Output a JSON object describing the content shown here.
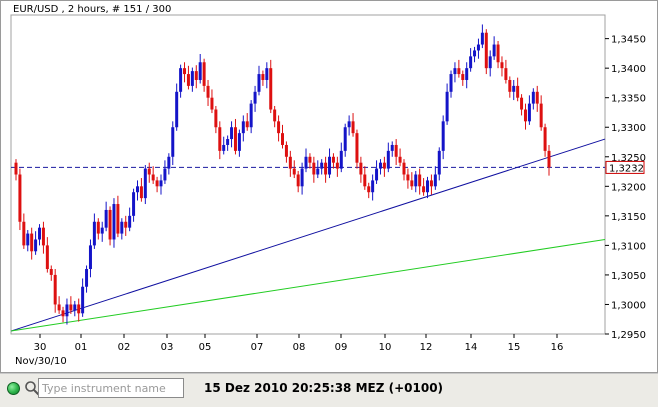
{
  "chart": {
    "title": "EUR/USD , 2 hours, # 151 / 300",
    "last_price_label": "1,3232"
  },
  "chart_data": {
    "type": "candlestick",
    "instrument": "EUR/USD",
    "timeframe": "2 hours",
    "ylim": [
      1.295,
      1.349
    ],
    "y_ticks": [
      "1,2950",
      "1,3000",
      "1,3050",
      "1,3100",
      "1,3150",
      "1,3200",
      "1,3250",
      "1,3300",
      "1,3350",
      "1,3400",
      "1,3450"
    ],
    "y_tick_values": [
      1.295,
      1.3,
      1.305,
      1.31,
      1.315,
      1.32,
      1.325,
      1.33,
      1.335,
      1.34,
      1.345
    ],
    "x_tick_labels": [
      "30",
      "01",
      "02",
      "03",
      "05",
      "07",
      "08",
      "09",
      "10",
      "12",
      "14",
      "15",
      "16"
    ],
    "x_sublabel": "Nov/30/10",
    "last_price": 1.3232,
    "trendlines": [
      {
        "color": "#1010a0",
        "start": {
          "date": "Nov/29/10",
          "price": 1.2955
        },
        "end": {
          "date": "Dec/17/10",
          "price": 1.328
        }
      },
      {
        "color": "#22cc22",
        "start": {
          "date": "Nov/29/10",
          "price": 1.2955
        },
        "end": {
          "date": "Dec/17/10",
          "price": 1.311
        }
      }
    ],
    "closes": [
      1.322,
      1.314,
      1.31,
      1.312,
      1.309,
      1.311,
      1.313,
      1.31,
      1.306,
      1.305,
      1.3,
      1.299,
      1.298,
      1.3,
      1.299,
      1.3,
      1.2985,
      1.303,
      1.306,
      1.31,
      1.314,
      1.312,
      1.313,
      1.316,
      1.311,
      1.317,
      1.312,
      1.314,
      1.313,
      1.315,
      1.319,
      1.32,
      1.318,
      1.323,
      1.322,
      1.321,
      1.32,
      1.321,
      1.323,
      1.325,
      1.33,
      1.336,
      1.34,
      1.339,
      1.337,
      1.3395,
      1.338,
      1.341,
      1.337,
      1.335,
      1.333,
      1.33,
      1.326,
      1.327,
      1.328,
      1.33,
      1.326,
      1.329,
      1.331,
      1.33,
      1.334,
      1.336,
      1.339,
      1.338,
      1.34,
      1.333,
      1.331,
      1.329,
      1.327,
      1.325,
      1.323,
      1.322,
      1.32,
      1.323,
      1.325,
      1.324,
      1.322,
      1.323,
      1.324,
      1.322,
      1.325,
      1.324,
      1.323,
      1.326,
      1.33,
      1.331,
      1.329,
      1.324,
      1.322,
      1.32,
      1.319,
      1.321,
      1.323,
      1.324,
      1.323,
      1.326,
      1.327,
      1.325,
      1.324,
      1.322,
      1.321,
      1.32,
      1.322,
      1.32,
      1.319,
      1.321,
      1.32,
      1.322,
      1.326,
      1.331,
      1.336,
      1.339,
      1.34,
      1.339,
      1.338,
      1.34,
      1.342,
      1.343,
      1.344,
      1.346,
      1.34,
      1.342,
      1.344,
      1.341,
      1.34,
      1.338,
      1.336,
      1.337,
      1.335,
      1.333,
      1.331,
      1.334,
      1.336,
      1.334,
      1.33,
      1.326,
      1.3232
    ]
  },
  "status_bar": {
    "search_placeholder": "Type instrument name",
    "datetime": "15 Dez 2010 20:25:38  MEZ (+0100)"
  }
}
